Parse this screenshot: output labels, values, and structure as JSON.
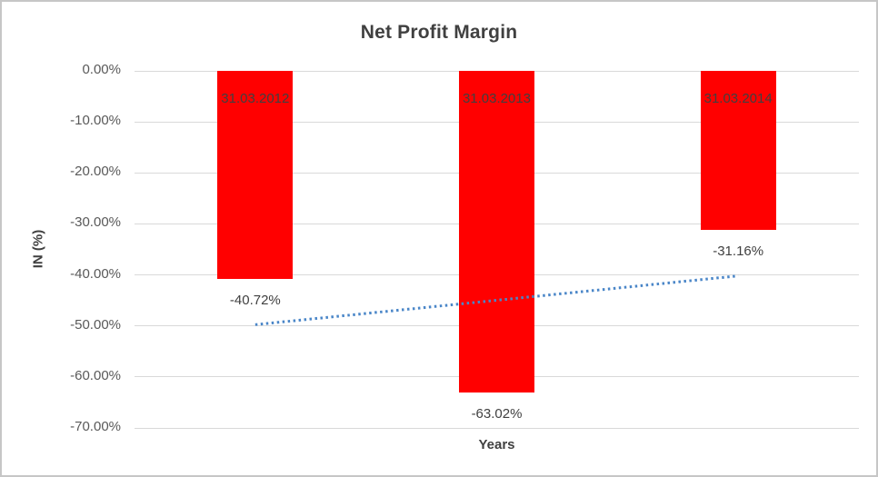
{
  "chart_data": {
    "type": "bar",
    "title": "Net Profit Margin",
    "xlabel": "Years",
    "ylabel": "IN (%)",
    "categories": [
      "31.03.2012",
      "31.03.2013",
      "31.03.2014"
    ],
    "values": [
      -40.72,
      -63.02,
      -31.16
    ],
    "value_labels": [
      "-40.72%",
      "-63.02%",
      "-31.16%"
    ],
    "ylim": [
      -70,
      0
    ],
    "yticks": [
      {
        "value": 0,
        "label": "0.00%"
      },
      {
        "value": -10,
        "label": "-10.00%"
      },
      {
        "value": -20,
        "label": "-20.00%"
      },
      {
        "value": -30,
        "label": "-30.00%"
      },
      {
        "value": -40,
        "label": "-40.00%"
      },
      {
        "value": -50,
        "label": "-50.00%"
      },
      {
        "value": -60,
        "label": "-60.00%"
      },
      {
        "value": -70,
        "label": "-70.00%"
      }
    ],
    "grid": true,
    "legend": "none",
    "bar_color": "#ff0000",
    "trendline": {
      "type": "linear",
      "style": "dotted",
      "color": "#4a86c8",
      "start_value": -49.75,
      "end_value": -40.19
    }
  }
}
